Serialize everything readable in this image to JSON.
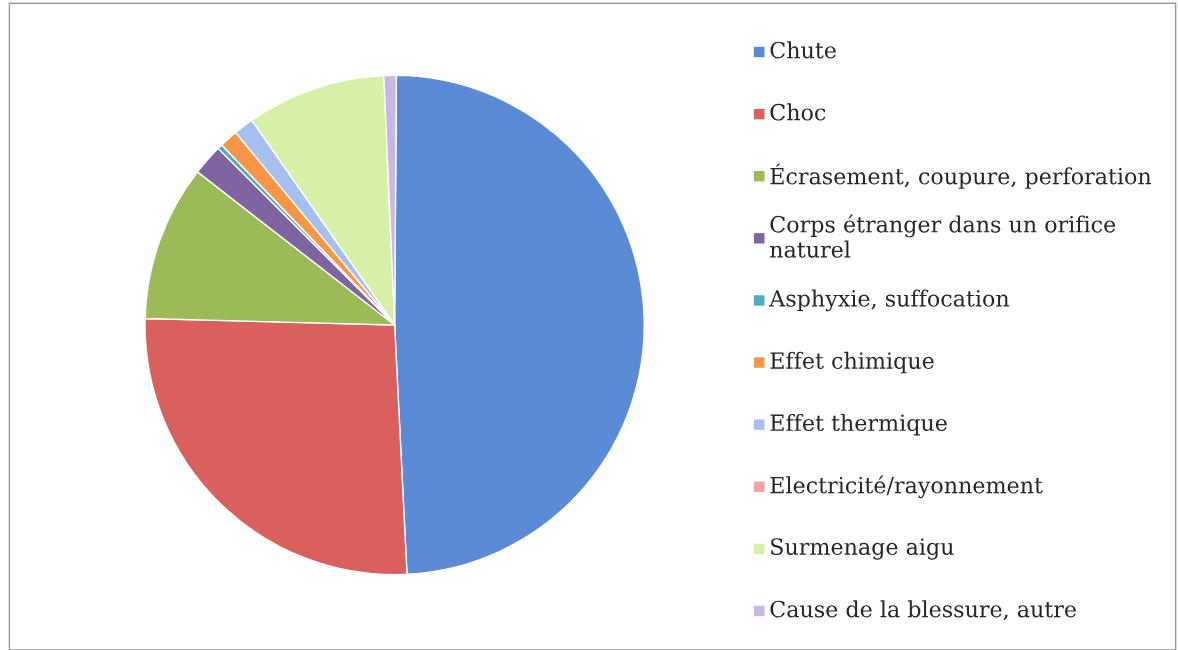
{
  "chart_data": {
    "type": "pie",
    "categories": [
      "Chute",
      "Choc",
      "Écrasement, coupure, perforation",
      "Corps étranger dans un orifice naturel",
      "Asphyxie, suffocation",
      "Effet chimique",
      "Effet thermique",
      "Electricité/rayonnement",
      "Surmenage aigu",
      "Cause de la blessure, autre"
    ],
    "values": [
      49.1,
      26.2,
      10.1,
      2.0,
      0.3,
      1.2,
      1.3,
      0.0,
      9.0,
      0.8
    ],
    "colors": [
      "#5b8ad6",
      "#d9605c",
      "#9bbb59",
      "#8064a2",
      "#4bacc6",
      "#f79646",
      "#a5c0ee",
      "#f4a3a0",
      "#d7f0a8",
      "#c8b8e4"
    ],
    "legend": "right"
  }
}
